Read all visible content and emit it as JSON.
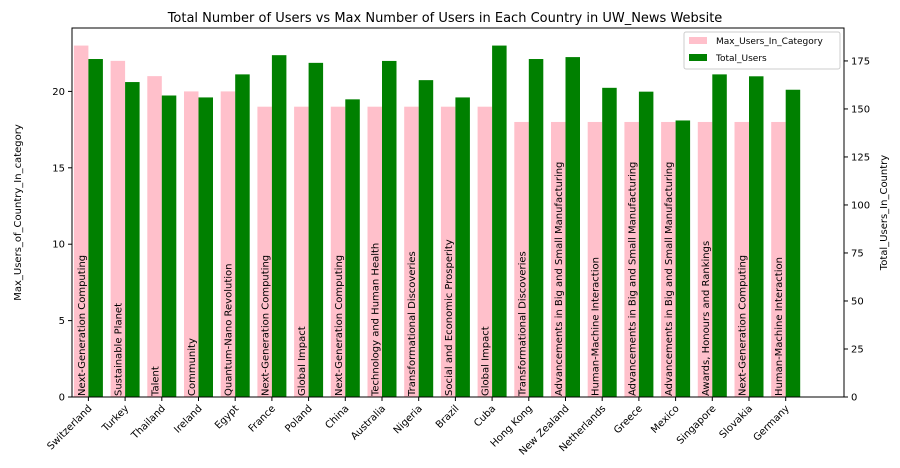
{
  "chart_data": {
    "type": "bar",
    "title": "Total Number of Users vs Max Number of Users in Each Country in UW_News Website",
    "xlabel": "",
    "ylabel_left": "Max_Users_of_Country_In_category",
    "ylabel_right": "Total_Users_In_Country",
    "categories": [
      "Switzerland",
      "Turkey",
      "Thailand",
      "Ireland",
      "Egypt",
      "France",
      "Poland",
      "China",
      "Australia",
      "Nigeria",
      "Brazil",
      "Cuba",
      "Hong Kong",
      "New Zealand",
      "Netherlands",
      "Greece",
      "Mexico",
      "Singapore",
      "Slovakia",
      "Germany"
    ],
    "bar_labels": [
      "Next-Generation Computing",
      "Sustainable Planet",
      "Talent",
      "Community",
      "Quantum-Nano Revolution",
      "Next-Generation Computing",
      "Global Impact",
      "Next-Generation Computing",
      "Technology and Human Health",
      "Transformational Discoveries",
      "Social and Economic Prosperity",
      "Global Impact",
      "Transformational Discoveries",
      "Advancements in Big and Small Manufacturing",
      "Human-Machine Interaction",
      "Advancements in Big and Small Manufacturing",
      "Advancements in Big and Small Manufacturing",
      "Awards, Honours and Rankings",
      "Next-Generation Computing",
      "Human-Machine Interaction"
    ],
    "series": [
      {
        "name": "Max_Users_In_Category",
        "axis": "left",
        "color": "#ffc0cb",
        "values": [
          23,
          22,
          21,
          20,
          20,
          19,
          19,
          19,
          19,
          19,
          19,
          19,
          18,
          18,
          18,
          18,
          18,
          18,
          18,
          18
        ]
      },
      {
        "name": "Total_Users",
        "axis": "right",
        "color": "#008000",
        "values": [
          176,
          164,
          157,
          156,
          168,
          178,
          174,
          155,
          175,
          165,
          156,
          183,
          176,
          177,
          161,
          159,
          144,
          168,
          167,
          160
        ]
      }
    ],
    "ylim_left": [
      0,
      24.15
    ],
    "ylim_right": [
      0,
      192.15
    ],
    "yticks_left": [
      "0",
      "5",
      "10",
      "15",
      "20"
    ],
    "yticks_right": [
      "0",
      "25",
      "50",
      "75",
      "100",
      "125",
      "150",
      "175"
    ],
    "legend": "top-right",
    "grid": false
  }
}
